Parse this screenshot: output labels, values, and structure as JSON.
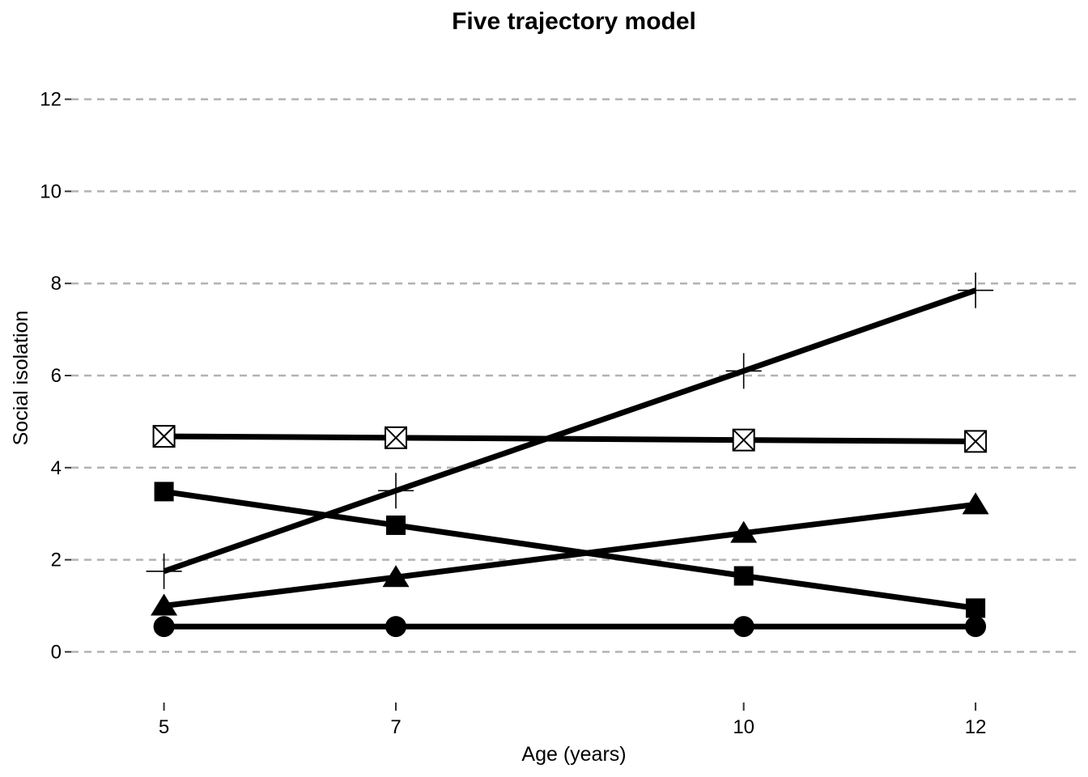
{
  "chart_data": {
    "type": "line",
    "title": "Five trajectory model",
    "xlabel": "Age (years)",
    "ylabel": "Social isolation",
    "x": [
      5,
      7,
      10,
      12
    ],
    "x_ticks": [
      "5",
      "7",
      "10",
      "12"
    ],
    "y_ticks": [
      "0",
      "2",
      "4",
      "6",
      "8",
      "10",
      "12"
    ],
    "ylim": [
      -1.1,
      13.1
    ],
    "xlim": [
      4.2,
      12.9
    ],
    "grid": "horizontal dashed",
    "legend": "none",
    "series": [
      {
        "marker": "circle",
        "values": [
          0.55,
          0.55,
          0.55,
          0.55
        ]
      },
      {
        "marker": "filled-triangle",
        "values": [
          1.0,
          1.62,
          2.58,
          3.2
        ]
      },
      {
        "marker": "filled-square",
        "values": [
          3.48,
          2.75,
          1.65,
          0.95
        ]
      },
      {
        "marker": "plus",
        "values": [
          1.75,
          3.5,
          6.1,
          7.85
        ]
      },
      {
        "marker": "boxed-x",
        "values": [
          4.68,
          4.65,
          4.6,
          4.57
        ]
      }
    ],
    "colors": {
      "line": "#000000",
      "grid": "#b3b3b3",
      "background": "#ffffff"
    }
  }
}
